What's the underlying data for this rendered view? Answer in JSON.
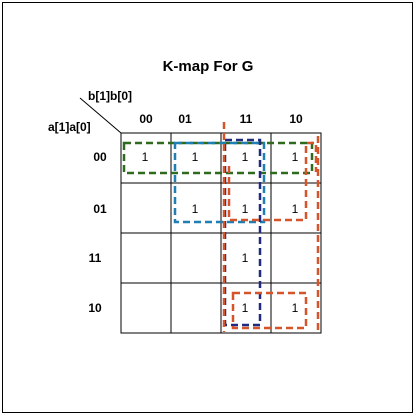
{
  "title": "K-map For G",
  "col_var_label": "b[1]b[0]",
  "row_var_label": "a[1]a[0]",
  "columns": [
    "00",
    "01",
    "11",
    "10"
  ],
  "rows": [
    "00",
    "01",
    "11",
    "10"
  ],
  "cells": [
    [
      "1",
      "1",
      "1",
      "1"
    ],
    [
      "",
      "1",
      "1",
      "1"
    ],
    [
      "",
      "",
      "1",
      ""
    ],
    [
      "",
      "",
      "1",
      "1"
    ]
  ],
  "groups": [
    {
      "id": "row00",
      "color": "#2e6b1f",
      "rows": [
        0,
        0
      ],
      "cols": [
        0,
        3
      ]
    },
    {
      "id": "col01-11",
      "color": "#1f7fb4",
      "rows": [
        0,
        1
      ],
      "cols": [
        1,
        2
      ]
    },
    {
      "id": "col11",
      "color": "#1f2a80",
      "rows": [
        0,
        3
      ],
      "cols": [
        2,
        2
      ]
    },
    {
      "id": "cols11-10-top",
      "color": "#d6542a",
      "rows": [
        0,
        1
      ],
      "cols": [
        2,
        3
      ]
    },
    {
      "id": "cols11-10-bottom",
      "color": "#d6542a",
      "rows": [
        3,
        3
      ],
      "cols": [
        2,
        3
      ]
    },
    {
      "id": "col11-full",
      "color": "#d6542a",
      "rows": [
        0,
        3
      ],
      "cols": [
        2,
        2
      ]
    }
  ]
}
